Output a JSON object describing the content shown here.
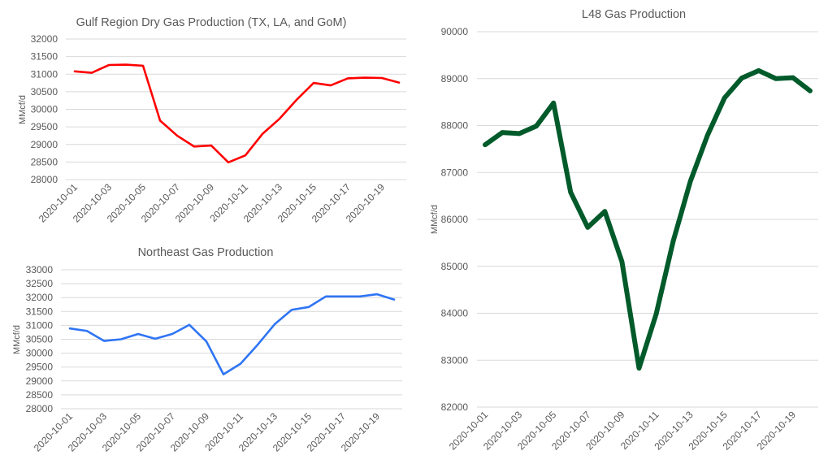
{
  "chart_data": [
    {
      "type": "line",
      "title": "Gulf Region Dry Gas Production (TX, LA, and GoM)",
      "ylabel": "MMcf/d",
      "xlabel": "",
      "ylim": [
        28000,
        32000
      ],
      "yticks": [
        28000,
        28500,
        29000,
        29500,
        30000,
        30500,
        31000,
        31500,
        32000
      ],
      "grid": true,
      "color": "#ff0000",
      "x": [
        "2020-10-01",
        "2020-10-02",
        "2020-10-03",
        "2020-10-04",
        "2020-10-05",
        "2020-10-06",
        "2020-10-07",
        "2020-10-08",
        "2020-10-09",
        "2020-10-10",
        "2020-10-11",
        "2020-10-12",
        "2020-10-13",
        "2020-10-14",
        "2020-10-15",
        "2020-10-16",
        "2020-10-17",
        "2020-10-18",
        "2020-10-19",
        "2020-10-20"
      ],
      "values": [
        31080,
        31040,
        31260,
        31270,
        31240,
        29680,
        29250,
        28940,
        28970,
        28490,
        28690,
        29300,
        29730,
        30270,
        30750,
        30680,
        30880,
        30900,
        30890,
        30760
      ]
    },
    {
      "type": "line",
      "title": "Northeast Gas Production",
      "ylabel": "MMcf/d",
      "xlabel": "",
      "ylim": [
        28000,
        33000
      ],
      "yticks": [
        28000,
        28500,
        29000,
        29500,
        30000,
        30500,
        31000,
        31500,
        32000,
        32500,
        33000
      ],
      "grid": true,
      "color": "#2f75f5",
      "x": [
        "2020-10-01",
        "2020-10-02",
        "2020-10-03",
        "2020-10-04",
        "2020-10-05",
        "2020-10-06",
        "2020-10-07",
        "2020-10-08",
        "2020-10-09",
        "2020-10-10",
        "2020-10-11",
        "2020-10-12",
        "2020-10-13",
        "2020-10-14",
        "2020-10-15",
        "2020-10-16",
        "2020-10-17",
        "2020-10-18",
        "2020-10-19",
        "2020-10-20"
      ],
      "values": [
        30890,
        30800,
        30440,
        30500,
        30690,
        30520,
        30690,
        31020,
        30420,
        29240,
        29620,
        30300,
        31040,
        31560,
        31660,
        32040,
        32040,
        32040,
        32120,
        31930
      ]
    },
    {
      "type": "line",
      "title": "L48 Gas Production",
      "ylabel": "MMcf/d",
      "xlabel": "",
      "ylim": [
        82000,
        90000
      ],
      "yticks": [
        82000,
        83000,
        84000,
        85000,
        86000,
        87000,
        88000,
        89000,
        90000
      ],
      "grid": true,
      "color": "#005a2a",
      "x": [
        "2020-10-01",
        "2020-10-02",
        "2020-10-03",
        "2020-10-04",
        "2020-10-05",
        "2020-10-06",
        "2020-10-07",
        "2020-10-08",
        "2020-10-09",
        "2020-10-10",
        "2020-10-11",
        "2020-10-12",
        "2020-10-13",
        "2020-10-14",
        "2020-10-15",
        "2020-10-16",
        "2020-10-17",
        "2020-10-18",
        "2020-10-19",
        "2020-10-20"
      ],
      "values": [
        87590,
        87850,
        87830,
        87990,
        88480,
        86580,
        85830,
        86170,
        85100,
        82830,
        83980,
        85540,
        86810,
        87790,
        88590,
        89010,
        89170,
        89000,
        89020,
        88740
      ]
    }
  ]
}
